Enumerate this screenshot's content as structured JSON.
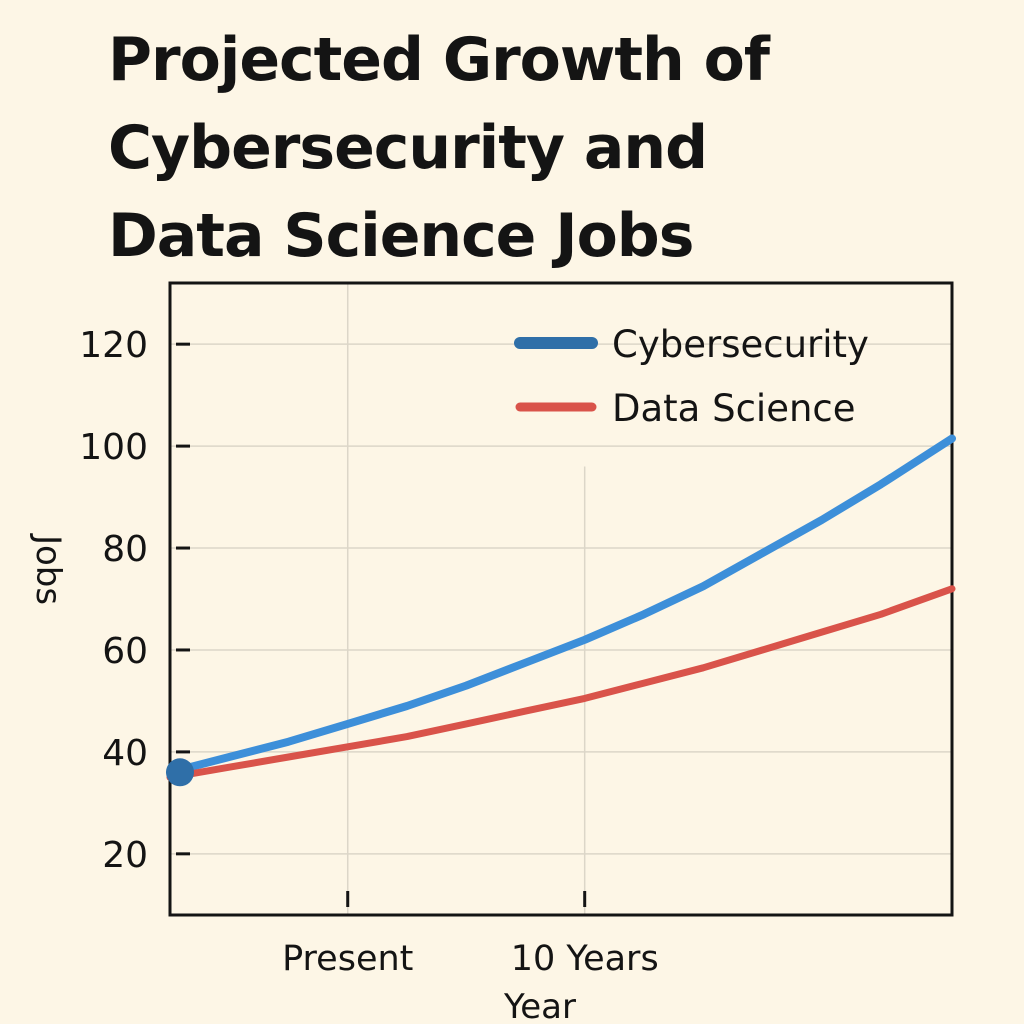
{
  "chart_data": {
    "type": "line",
    "title_lines": [
      "Projected Growth of",
      "Cybersecurity and",
      "Data Science Jobs"
    ],
    "xlabel": "Year",
    "ylabel": "Jobs",
    "x_ticks": [
      {
        "label": "Present",
        "value": 0
      },
      {
        "label": "10 Years",
        "value": 10
      }
    ],
    "xlim": [
      -7.5,
      25.5
    ],
    "ylim": [
      8,
      132
    ],
    "y_ticks": [
      20,
      40,
      60,
      80,
      100,
      120
    ],
    "grid": true,
    "legend_position": "top-right",
    "series": [
      {
        "name": "Cybersecurity",
        "color": "#3d8fd9",
        "legend_color": "#2f6fa8",
        "x": [
          -7.5,
          -5,
          -2.5,
          0,
          2.5,
          5,
          7.5,
          10,
          12.5,
          15,
          17.5,
          20,
          22.5,
          25.5
        ],
        "values": [
          36,
          39,
          42,
          45.5,
          49,
          53,
          57.5,
          62,
          67,
          72.5,
          79,
          85.5,
          92.5,
          101.5
        ]
      },
      {
        "name": "Data Science",
        "color": "#d9534a",
        "legend_color": "#d9534a",
        "x": [
          -7.5,
          -5,
          -2.5,
          0,
          2.5,
          5,
          7.5,
          10,
          12.5,
          15,
          17.5,
          20,
          22.5,
          25.5
        ],
        "values": [
          35,
          37,
          39,
          41,
          43,
          45.5,
          48,
          50.5,
          53.5,
          56.5,
          60,
          63.5,
          67,
          72
        ]
      }
    ],
    "start_marker": {
      "x": -7.5,
      "value": 36,
      "color": "#2f6fa8"
    }
  }
}
